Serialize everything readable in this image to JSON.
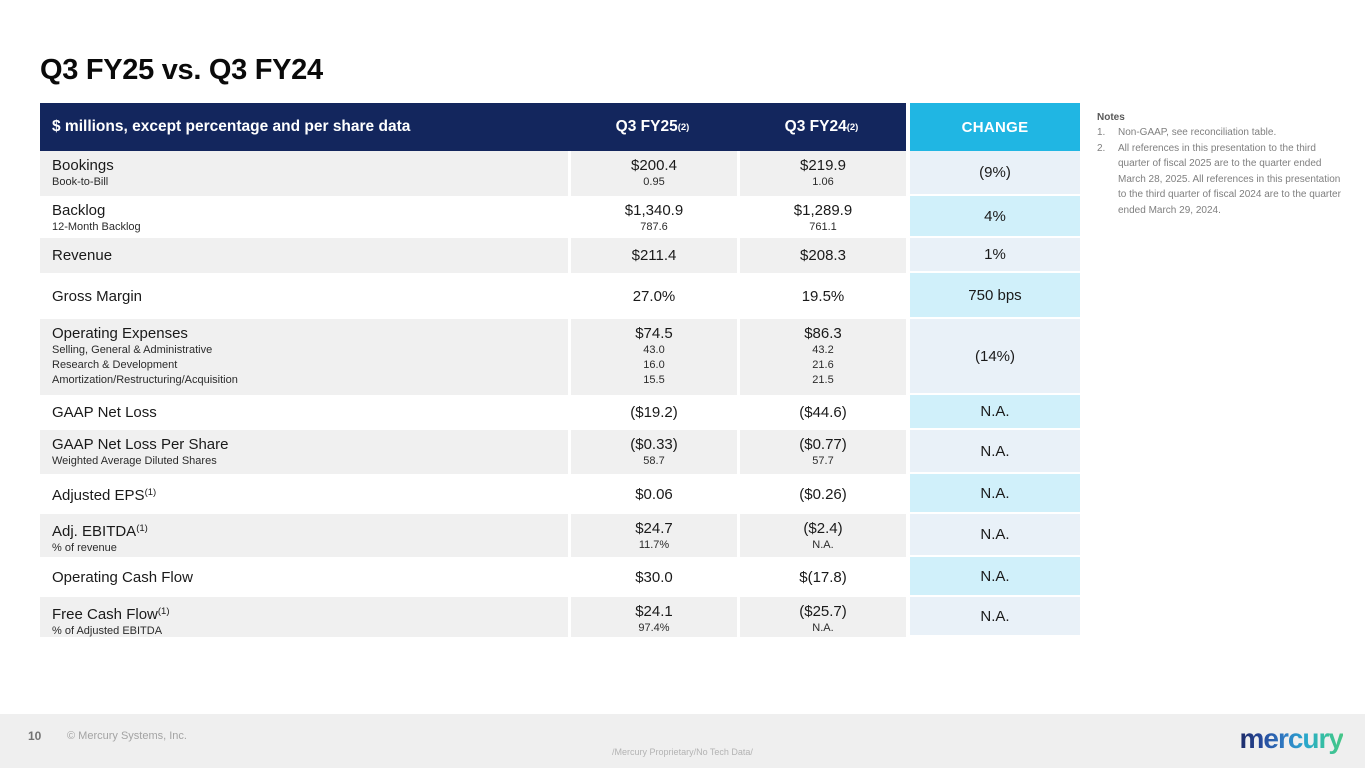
{
  "slide": {
    "title": "Q3 FY25 vs. Q3 FY24"
  },
  "colors": {
    "header_navy": "#13265d",
    "change_header_cyan": "#20b6e3",
    "row_gray": "#f0f0f0",
    "change_cell_light": "#e9f1f8",
    "change_cell_cyan": "#d0f0fa"
  },
  "table": {
    "header": {
      "label": "$ millions, except percentage and per share data",
      "fy25": "Q3 FY25",
      "fy25_sup": "(2)",
      "fy24": "Q3 FY24",
      "fy24_sup": "(2)",
      "change": "CHANGE"
    },
    "rows": [
      {
        "label": "Bookings",
        "subs": [
          "Book-to-Bill"
        ],
        "fy25": "$200.4",
        "fy25_subs": [
          "0.95"
        ],
        "fy24": "$219.9",
        "fy24_subs": [
          "1.06"
        ],
        "change": "(9%)"
      },
      {
        "label": "Backlog",
        "subs": [
          "12-Month Backlog"
        ],
        "fy25": "$1,340.9",
        "fy25_subs": [
          "787.6"
        ],
        "fy24": "$1,289.9",
        "fy24_subs": [
          "761.1"
        ],
        "change": "4%"
      },
      {
        "label": "Revenue",
        "fy25": "$211.4",
        "fy24": "$208.3",
        "change": "1%"
      },
      {
        "label": "Gross Margin",
        "fy25": "27.0%",
        "fy24": "19.5%",
        "change": "750 bps"
      },
      {
        "label": "Operating Expenses",
        "subs": [
          "Selling, General & Administrative",
          "Research & Development",
          "Amortization/Restructuring/Acquisition"
        ],
        "fy25": "$74.5",
        "fy25_subs": [
          "43.0",
          "16.0",
          "15.5"
        ],
        "fy24": "$86.3",
        "fy24_subs": [
          "43.2",
          "21.6",
          "21.5"
        ],
        "change": "(14%)"
      },
      {
        "label": "GAAP Net Loss",
        "fy25": "($19.2)",
        "fy24": "($44.6)",
        "change": "N.A."
      },
      {
        "label": "GAAP Net Loss Per Share",
        "subs": [
          "Weighted Average Diluted Shares"
        ],
        "fy25": "($0.33)",
        "fy25_subs": [
          "58.7"
        ],
        "fy24": "($0.77)",
        "fy24_subs": [
          "57.7"
        ],
        "change": "N.A."
      },
      {
        "label": "Adjusted EPS",
        "label_sup": "(1)",
        "fy25": "$0.06",
        "fy24": "($0.26)",
        "change": "N.A."
      },
      {
        "label": "Adj. EBITDA",
        "label_sup": "(1)",
        "subs": [
          "% of revenue"
        ],
        "fy25": "$24.7",
        "fy25_subs": [
          "11.7%"
        ],
        "fy24": "($2.4)",
        "fy24_subs": [
          "N.A."
        ],
        "change": "N.A."
      },
      {
        "label": "Operating Cash Flow",
        "fy25": "$30.0",
        "fy24": "$(17.8)",
        "change": "N.A."
      },
      {
        "label": "Free Cash Flow",
        "label_sup": "(1)",
        "subs": [
          "% of Adjusted EBITDA"
        ],
        "fy25": "$24.1",
        "fy25_subs": [
          "97.4%"
        ],
        "fy24": "($25.7)",
        "fy24_subs": [
          "N.A."
        ],
        "change": "N.A."
      }
    ]
  },
  "notes": {
    "heading": "Notes",
    "items": [
      {
        "num": "1.",
        "text": "Non-GAAP, see reconciliation table."
      },
      {
        "num": "2.",
        "text": "All references in this presentation to the third quarter of fiscal 2025 are to the quarter ended March 28, 2025. All references in this presentation to the third quarter of fiscal 2024 are to the quarter ended March 29, 2024."
      }
    ]
  },
  "footer": {
    "page_number": "10",
    "copyright": "© Mercury Systems, Inc.",
    "proprietary": "/Mercury Proprietary/No Tech Data/",
    "logo_text": "mercury"
  }
}
